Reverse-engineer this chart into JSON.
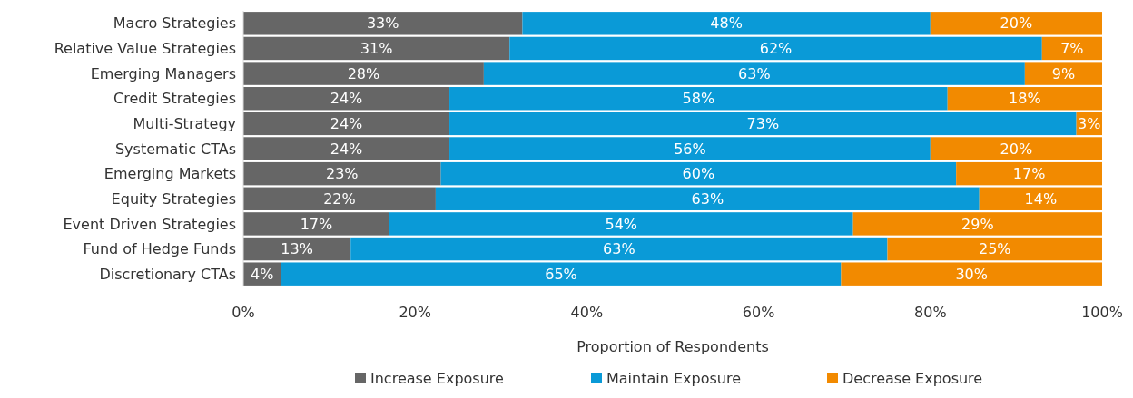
{
  "chart_data": {
    "type": "bar",
    "orientation": "horizontal",
    "stacked": true,
    "xlabel": "Proportion of Respondents",
    "categories": [
      "Macro Strategies",
      "Relative Value Strategies",
      "Emerging Managers",
      "Credit Strategies",
      "Multi-Strategy",
      "Systematic CTAs",
      "Emerging Markets",
      "Equity Strategies",
      "Event Driven Strategies",
      "Fund of Hedge Funds",
      "Discretionary CTAs"
    ],
    "series": [
      {
        "name": "Increase Exposure",
        "color": "#666666",
        "values": [
          32.5,
          31,
          28,
          24,
          24,
          24,
          23,
          22.4,
          17,
          12.5,
          4.4
        ],
        "value_labels": [
          "33%",
          "31%",
          "28%",
          "24%",
          "24%",
          "24%",
          "23%",
          "22%",
          "17%",
          "13%",
          "4%"
        ]
      },
      {
        "name": "Maintain Exposure",
        "color": "#0a9ad7",
        "values": [
          47.5,
          62,
          63,
          58,
          73,
          56,
          60,
          63.3,
          54,
          62.5,
          65.2
        ],
        "value_labels": [
          "48%",
          "62%",
          "63%",
          "58%",
          "73%",
          "56%",
          "60%",
          "63%",
          "54%",
          "63%",
          "65%"
        ]
      },
      {
        "name": "Decrease Exposure",
        "color": "#f28a00",
        "values": [
          20,
          7,
          9,
          18,
          3,
          20,
          17,
          14.3,
          29,
          25,
          30.4
        ],
        "value_labels": [
          "20%",
          "7%",
          "9%",
          "18%",
          "3%",
          "20%",
          "17%",
          "14%",
          "29%",
          "25%",
          "30%"
        ]
      }
    ],
    "xlim": [
      0,
      100
    ],
    "xticks": [
      {
        "value": 0,
        "label": "0%"
      },
      {
        "value": 20,
        "label": "20%"
      },
      {
        "value": 40,
        "label": "40%"
      },
      {
        "value": 60,
        "label": "60%"
      },
      {
        "value": 80,
        "label": "80%"
      },
      {
        "value": 100,
        "label": "100%"
      }
    ],
    "grid": false,
    "legend": "bottom"
  }
}
